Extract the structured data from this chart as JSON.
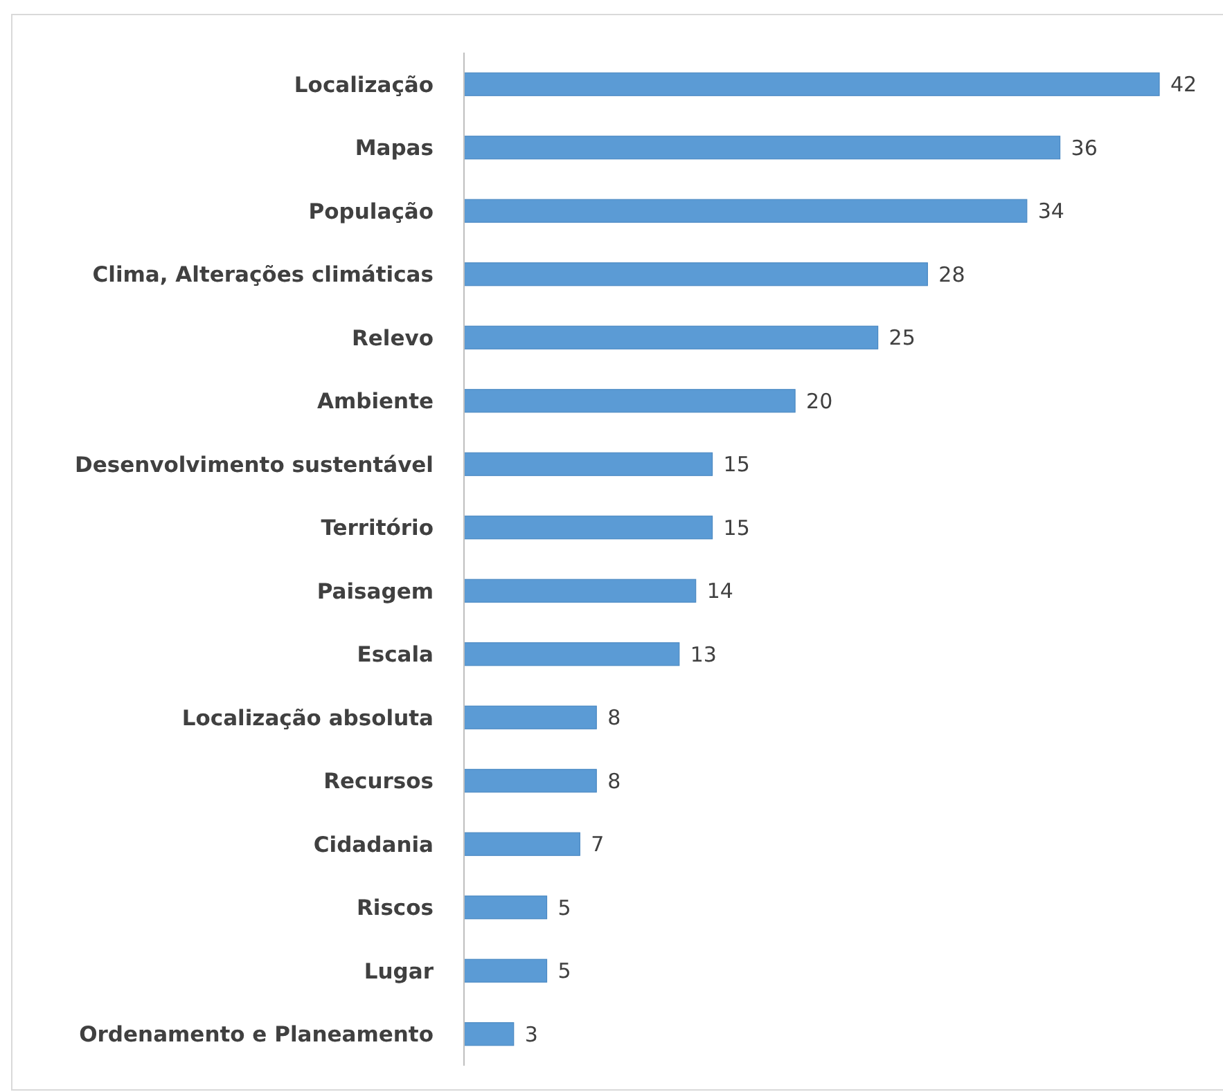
{
  "chart_data": {
    "type": "bar",
    "orientation": "horizontal",
    "data_labels": true,
    "color": "#5b9bd5",
    "categories": [
      "Localização",
      "Mapas",
      "População",
      "Clima, Alterações climáticas",
      "Relevo",
      "Ambiente",
      "Desenvolvimento sustentável",
      "Território",
      "Paisagem",
      "Escala",
      "Localização absoluta",
      "Recursos",
      "Cidadania",
      "Riscos",
      "Lugar",
      "Ordenamento e Planeamento"
    ],
    "values": [
      42,
      36,
      34,
      28,
      25,
      20,
      15,
      15,
      14,
      13,
      8,
      8,
      7,
      5,
      5,
      3
    ]
  }
}
